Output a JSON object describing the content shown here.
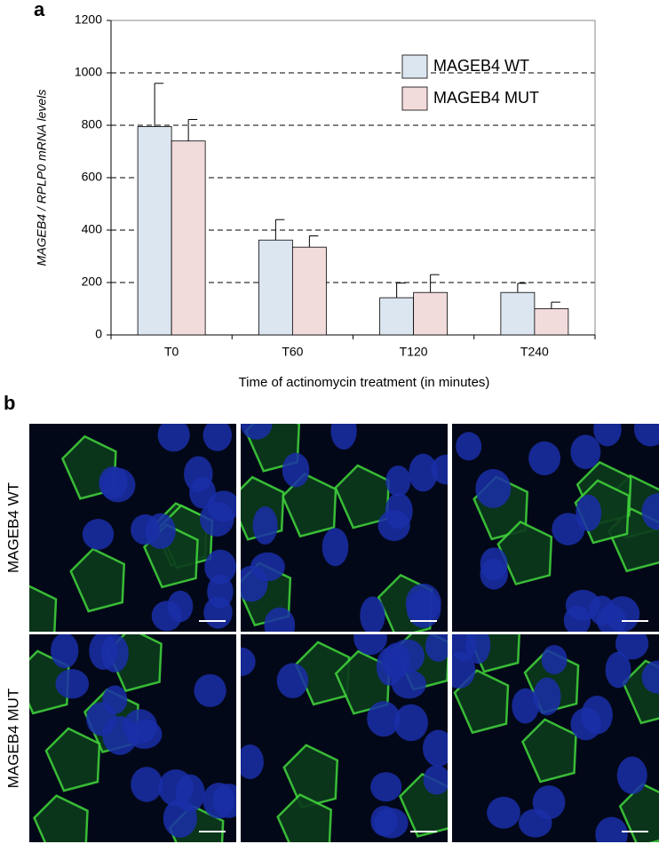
{
  "chart_data": {
    "type": "bar",
    "panel_label": "a",
    "y_label": "MAGEB4 / RPLP0 mRNA levels",
    "x_label": "Time of actinomycin treatment (in minutes)",
    "categories": [
      "T0",
      "T60",
      "T120",
      "T240"
    ],
    "series": [
      {
        "name": "MAGEB4 WT",
        "color": "#dce6f1",
        "values": [
          795,
          362,
          142,
          162
        ],
        "errors": [
          165,
          78,
          56,
          35
        ]
      },
      {
        "name": "MAGEB4 MUT",
        "color": "#f2dcdb",
        "values": [
          740,
          335,
          162,
          100
        ],
        "errors": [
          82,
          43,
          68,
          25
        ]
      }
    ],
    "ylim": [
      0,
      1200
    ],
    "yticks": [
      0,
      200,
      400,
      600,
      800,
      1000,
      1200
    ],
    "grid": true,
    "legend": "upper right"
  },
  "panel_b": {
    "panel_label": "b",
    "rows": [
      "MAGEB4 WT",
      "MAGEB4 MUT"
    ]
  }
}
